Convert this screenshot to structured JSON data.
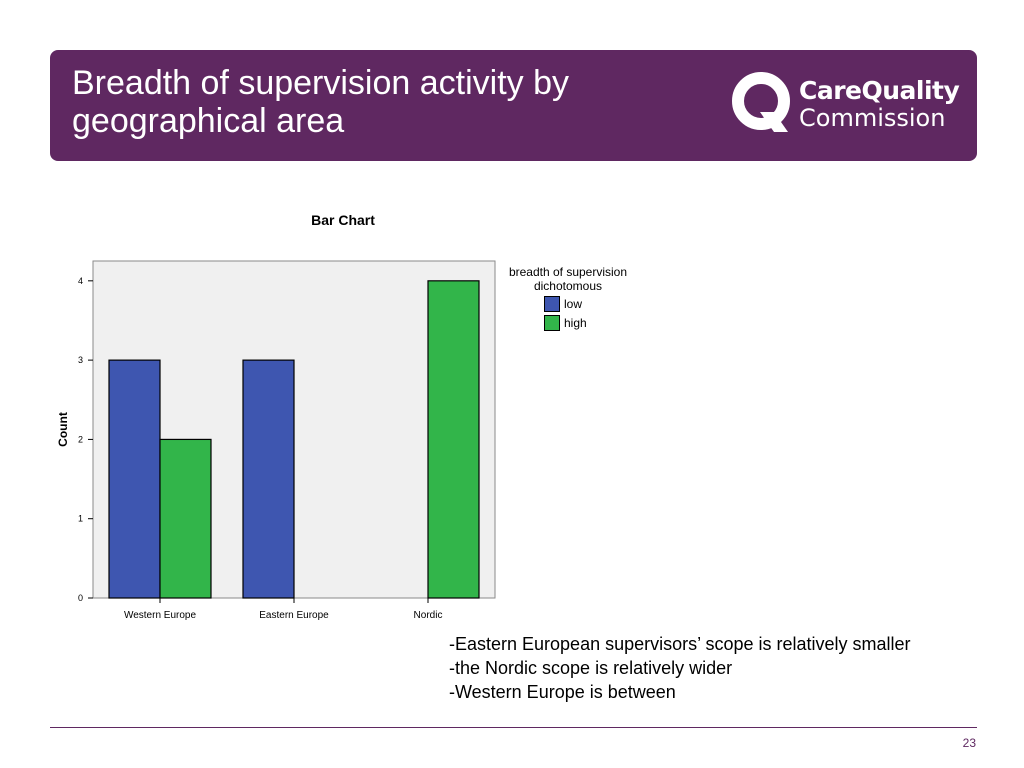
{
  "header": {
    "title": "Breadth of supervision activity by geographical area",
    "logo_line1": "CareQuality",
    "logo_line2": "Commission",
    "background": "#5f2861"
  },
  "chart_data": {
    "type": "bar",
    "title": "Bar Chart",
    "xlabel": "",
    "ylabel": "Count",
    "ylim": [
      0,
      4.25
    ],
    "yticks": [
      0,
      1,
      2,
      3,
      4
    ],
    "categories": [
      "Western Europe",
      "Eastern Europe",
      "Nordic"
    ],
    "series": [
      {
        "name": "low",
        "color": "#3e56b0",
        "values": [
          3,
          3,
          0
        ]
      },
      {
        "name": "high",
        "color": "#32b54a",
        "values": [
          2,
          0,
          4
        ]
      }
    ],
    "legend_title": "breadth of supervision dichotomous",
    "legend_position": "right",
    "plot_background": "#f0f0f0",
    "grid": false
  },
  "notes": [
    "-Eastern European supervisors’ scope is relatively smaller",
    "-the Nordic scope is relatively wider",
    "-Western Europe is between"
  ],
  "page_number": "23"
}
